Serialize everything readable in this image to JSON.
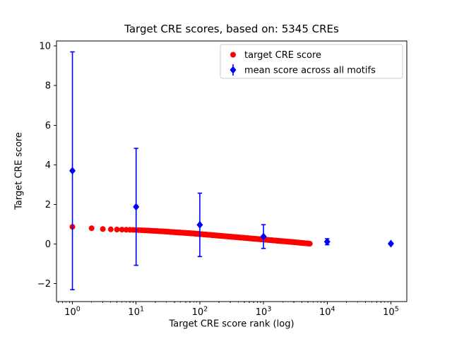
{
  "chart_data": {
    "type": "scatter",
    "title": "Target CRE scores, based on: 5345 CREs",
    "xlabel": "Target CRE score rank (log)",
    "ylabel": "Target CRE score",
    "x_scale": "log",
    "xlim_log": [
      -0.25,
      5.25
    ],
    "ylim": [
      -2.9,
      10.25
    ],
    "x_tick_exponents": [
      0,
      1,
      2,
      3,
      4,
      5
    ],
    "y_ticks": [
      -2,
      0,
      2,
      4,
      6,
      8,
      10
    ],
    "grid": false,
    "series": [
      {
        "name": "target CRE score",
        "type": "scatter",
        "marker": "circle",
        "color": "#ff0000",
        "x": [
          1,
          2,
          3,
          4,
          5,
          6,
          7,
          8,
          9,
          10,
          12,
          15,
          18,
          22,
          27,
          33,
          40,
          50,
          62,
          76,
          94,
          115,
          142,
          175,
          215,
          265,
          326,
          401,
          494,
          608,
          748,
          921,
          1134,
          1396,
          1718,
          2115,
          2603,
          3204,
          3944,
          4855,
          5345
        ],
        "y": [
          0.87,
          0.8,
          0.76,
          0.745,
          0.735,
          0.73,
          0.725,
          0.72,
          0.715,
          0.71,
          0.7,
          0.685,
          0.67,
          0.655,
          0.64,
          0.62,
          0.6,
          0.58,
          0.56,
          0.54,
          0.515,
          0.49,
          0.465,
          0.44,
          0.415,
          0.39,
          0.365,
          0.34,
          0.315,
          0.29,
          0.265,
          0.24,
          0.215,
          0.19,
          0.165,
          0.14,
          0.115,
          0.09,
          0.06,
          0.035,
          0.02
        ],
        "max_rank": 5345
      },
      {
        "name": "mean score across all motifs",
        "type": "errorbar",
        "marker": "diamond",
        "color": "#0000ff",
        "x": [
          1,
          10,
          100,
          1000,
          10000,
          100000
        ],
        "y": [
          3.7,
          1.88,
          0.97,
          0.38,
          0.12,
          0.02
        ],
        "yerr": [
          6.0,
          2.95,
          1.6,
          0.6,
          0.15,
          0.05
        ]
      }
    ],
    "legend": {
      "position": "upper right",
      "items": [
        "target CRE score",
        "mean score across all motifs"
      ]
    }
  },
  "colors": {
    "background": "#ffffff",
    "axis": "#000000",
    "legend_border": "#cccccc",
    "red_series": "#ff0000",
    "blue_series": "#0000ff"
  }
}
